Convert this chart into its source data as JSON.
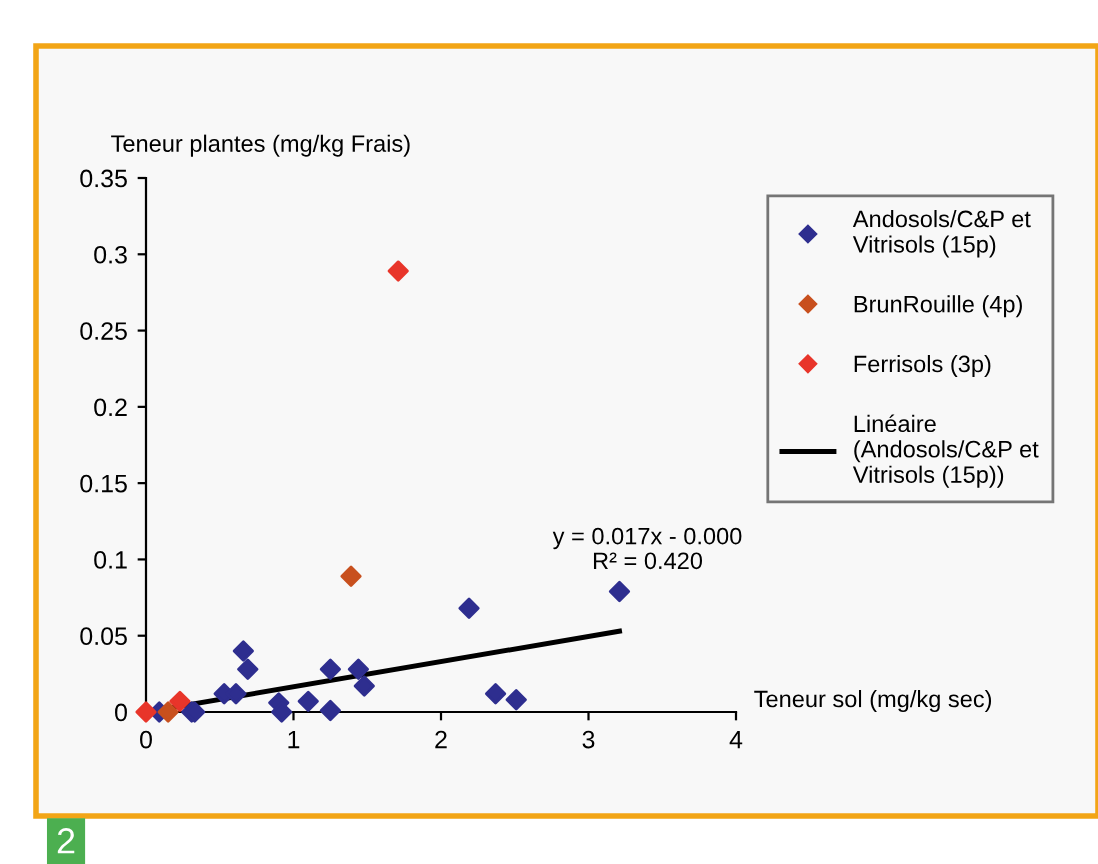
{
  "chart_data": {
    "type": "scatter",
    "ylabel": "Teneur plantes (mg/kg Frais)",
    "xlabel": "Teneur sol (mg/kg sec)",
    "xlim": [
      0,
      4
    ],
    "xticks": [
      0,
      1,
      2,
      3,
      4
    ],
    "ylim": [
      0,
      0.35
    ],
    "yticks": [
      0,
      0.05,
      0.1,
      0.15,
      0.2,
      0.25,
      0.3,
      0.35
    ],
    "grid": false,
    "legend": "right",
    "marker": "diamond",
    "series": [
      {
        "name": "Andosols/C&P et Vitrisols (15p)",
        "color": "#2e2e8f",
        "x": [
          0.09,
          0.31,
          0.33,
          0.53,
          0.61,
          0.66,
          0.69,
          0.9,
          0.92,
          1.1,
          1.25,
          1.25,
          1.44,
          1.48,
          2.19,
          2.37,
          2.51,
          3.21
        ],
        "values": [
          0,
          0,
          0,
          0.012,
          0.012,
          0.04,
          0.028,
          0.006,
          0,
          0.007,
          0.028,
          0.001,
          0.028,
          0.017,
          0.068,
          0.012,
          0.008,
          0.079
        ]
      },
      {
        "name": "BrunRouille (4p)",
        "color": "#c8501e",
        "x": [
          0.15,
          1.39
        ],
        "values": [
          0,
          0.089
        ]
      },
      {
        "name": "Ferrisols (3p)",
        "color": "#e8352a",
        "x": [
          0,
          0.23,
          1.71
        ],
        "values": [
          0,
          0.007,
          0.289
        ]
      },
      {
        "name": "Linéaire (Andosols/C&P et Vitrisols (15p))",
        "type": "line",
        "marker": "none",
        "color": "#000000",
        "x": [
          0,
          3.21
        ],
        "values": [
          0,
          0.053
        ]
      }
    ],
    "annotations": [
      "y = 0.017x - 0.000",
      "R² = 0.420",
      "2"
    ]
  }
}
